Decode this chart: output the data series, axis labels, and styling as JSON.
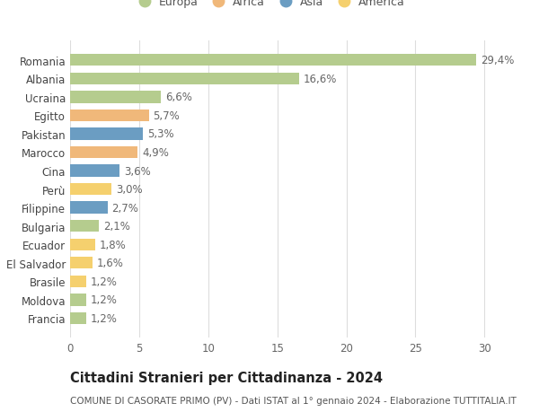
{
  "countries": [
    "Francia",
    "Moldova",
    "Brasile",
    "El Salvador",
    "Ecuador",
    "Bulgaria",
    "Filippine",
    "Perù",
    "Cina",
    "Marocco",
    "Pakistan",
    "Egitto",
    "Ucraina",
    "Albania",
    "Romania"
  ],
  "values": [
    1.2,
    1.2,
    1.2,
    1.6,
    1.8,
    2.1,
    2.7,
    3.0,
    3.6,
    4.9,
    5.3,
    5.7,
    6.6,
    16.6,
    29.4
  ],
  "labels": [
    "1,2%",
    "1,2%",
    "1,2%",
    "1,6%",
    "1,8%",
    "2,1%",
    "2,7%",
    "3,0%",
    "3,6%",
    "4,9%",
    "5,3%",
    "5,7%",
    "6,6%",
    "16,6%",
    "29,4%"
  ],
  "continents": [
    "Europa",
    "Europa",
    "America",
    "America",
    "America",
    "Europa",
    "Asia",
    "America",
    "Asia",
    "Africa",
    "Asia",
    "Africa",
    "Europa",
    "Europa",
    "Europa"
  ],
  "continent_colors": {
    "Europa": "#b5cc8e",
    "Africa": "#f0b87a",
    "Asia": "#6b9dc2",
    "America": "#f5d06e"
  },
  "legend_order": [
    "Europa",
    "Africa",
    "Asia",
    "America"
  ],
  "legend_colors": [
    "#b5cc8e",
    "#f0b87a",
    "#6b9dc2",
    "#f5d06e"
  ],
  "title": "Cittadini Stranieri per Cittadinanza - 2024",
  "subtitle": "COMUNE DI CASORATE PRIMO (PV) - Dati ISTAT al 1° gennaio 2024 - Elaborazione TUTTITALIA.IT",
  "xlim": [
    0,
    32
  ],
  "xticks": [
    0,
    5,
    10,
    15,
    20,
    25,
    30
  ],
  "background_color": "#ffffff",
  "bar_height": 0.65,
  "grid_color": "#dddddd",
  "label_fontsize": 8.5,
  "title_fontsize": 10.5,
  "subtitle_fontsize": 7.5,
  "tick_fontsize": 8.5,
  "legend_fontsize": 9
}
